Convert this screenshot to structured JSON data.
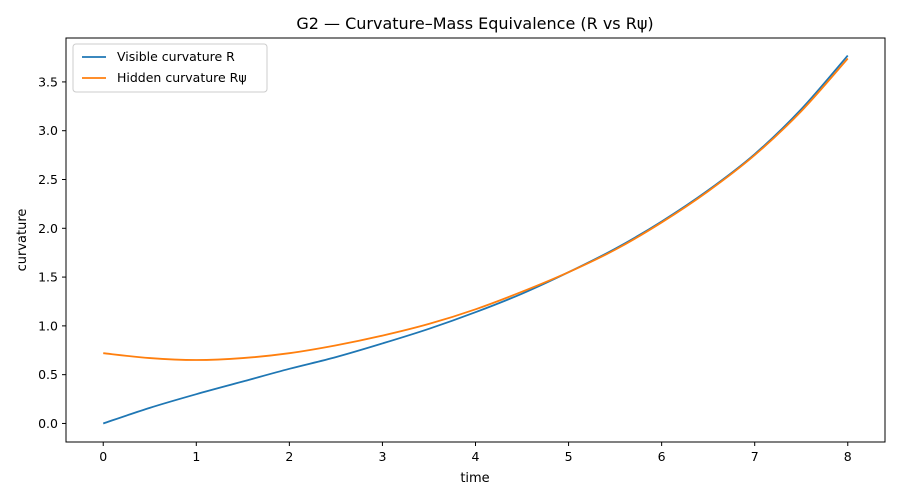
{
  "chart_data": {
    "type": "line",
    "title": "G2 — Curvature–Mass Equivalence (R vs Rψ)",
    "xlabel": "time",
    "ylabel": "curvature",
    "xlim": [
      -0.4,
      8.4
    ],
    "ylim": [
      -0.19,
      3.95
    ],
    "xticks": [
      0,
      1,
      2,
      3,
      4,
      5,
      6,
      7,
      8
    ],
    "xtick_labels": [
      "0",
      "1",
      "2",
      "3",
      "4",
      "5",
      "6",
      "7",
      "8"
    ],
    "yticks": [
      0.0,
      0.5,
      1.0,
      1.5,
      2.0,
      2.5,
      3.0,
      3.5
    ],
    "ytick_labels": [
      "0.0",
      "0.5",
      "1.0",
      "1.5",
      "2.0",
      "2.5",
      "3.0",
      "3.5"
    ],
    "grid": false,
    "legend": {
      "position": "top-left"
    },
    "x": [
      0,
      0.5,
      1,
      1.5,
      2,
      2.5,
      3,
      3.5,
      4,
      4.5,
      5,
      5.5,
      6,
      6.5,
      7,
      7.5,
      8
    ],
    "series": [
      {
        "name": "Visible curvature R",
        "color": "#1f77b4",
        "values": [
          0.0,
          0.16,
          0.3,
          0.43,
          0.56,
          0.68,
          0.82,
          0.97,
          1.14,
          1.33,
          1.55,
          1.79,
          2.07,
          2.39,
          2.76,
          3.22,
          3.77
        ]
      },
      {
        "name": "Hidden curvature Rψ",
        "color": "#ff7f0e",
        "values": [
          0.72,
          0.67,
          0.65,
          0.67,
          0.72,
          0.8,
          0.9,
          1.02,
          1.17,
          1.35,
          1.55,
          1.78,
          2.06,
          2.38,
          2.75,
          3.2,
          3.74
        ]
      }
    ]
  }
}
